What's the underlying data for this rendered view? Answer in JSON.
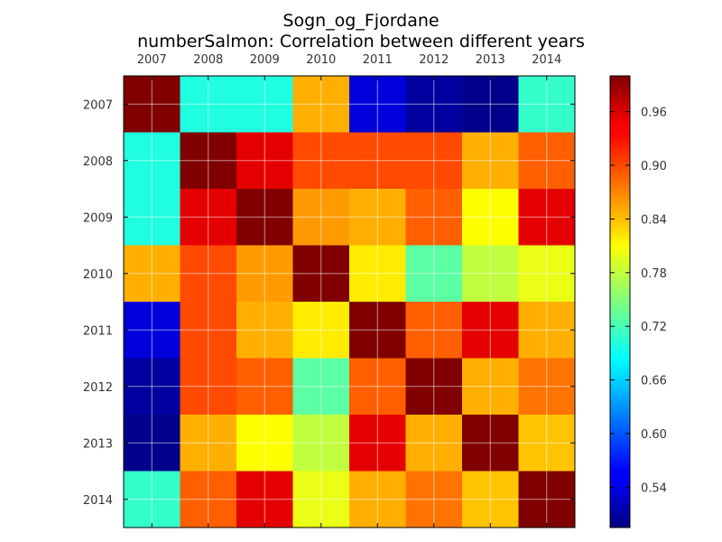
{
  "chart_data": {
    "type": "heatmap",
    "title": "Sogn_og_Fjordane",
    "subtitle": "numberSalmon: Correlation between different years",
    "x_categories": [
      "2007",
      "2008",
      "2009",
      "2010",
      "2011",
      "2012",
      "2013",
      "2014"
    ],
    "y_categories": [
      "2007",
      "2008",
      "2009",
      "2010",
      "2011",
      "2012",
      "2013",
      "2014"
    ],
    "values": [
      [
        1.0,
        0.7,
        0.7,
        0.85,
        0.54,
        0.51,
        0.5,
        0.71
      ],
      [
        0.7,
        1.0,
        0.95,
        0.9,
        0.9,
        0.9,
        0.85,
        0.89
      ],
      [
        0.7,
        0.95,
        1.0,
        0.86,
        0.85,
        0.89,
        0.81,
        0.95
      ],
      [
        0.85,
        0.9,
        0.86,
        1.0,
        0.82,
        0.73,
        0.78,
        0.8
      ],
      [
        0.54,
        0.9,
        0.85,
        0.82,
        1.0,
        0.89,
        0.95,
        0.85
      ],
      [
        0.51,
        0.9,
        0.89,
        0.73,
        0.89,
        1.0,
        0.85,
        0.88
      ],
      [
        0.5,
        0.85,
        0.81,
        0.78,
        0.95,
        0.85,
        1.0,
        0.84
      ],
      [
        0.71,
        0.89,
        0.95,
        0.8,
        0.85,
        0.88,
        0.84,
        1.0
      ]
    ],
    "colorbar": {
      "colormap": "jet",
      "range": [
        0.495,
        1.0
      ],
      "ticks": [
        0.54,
        0.6,
        0.66,
        0.72,
        0.78,
        0.84,
        0.9,
        0.96
      ],
      "tick_labels": [
        "0.54",
        "0.60",
        "0.66",
        "0.72",
        "0.78",
        "0.84",
        "0.90",
        "0.96"
      ]
    },
    "grid": true
  }
}
